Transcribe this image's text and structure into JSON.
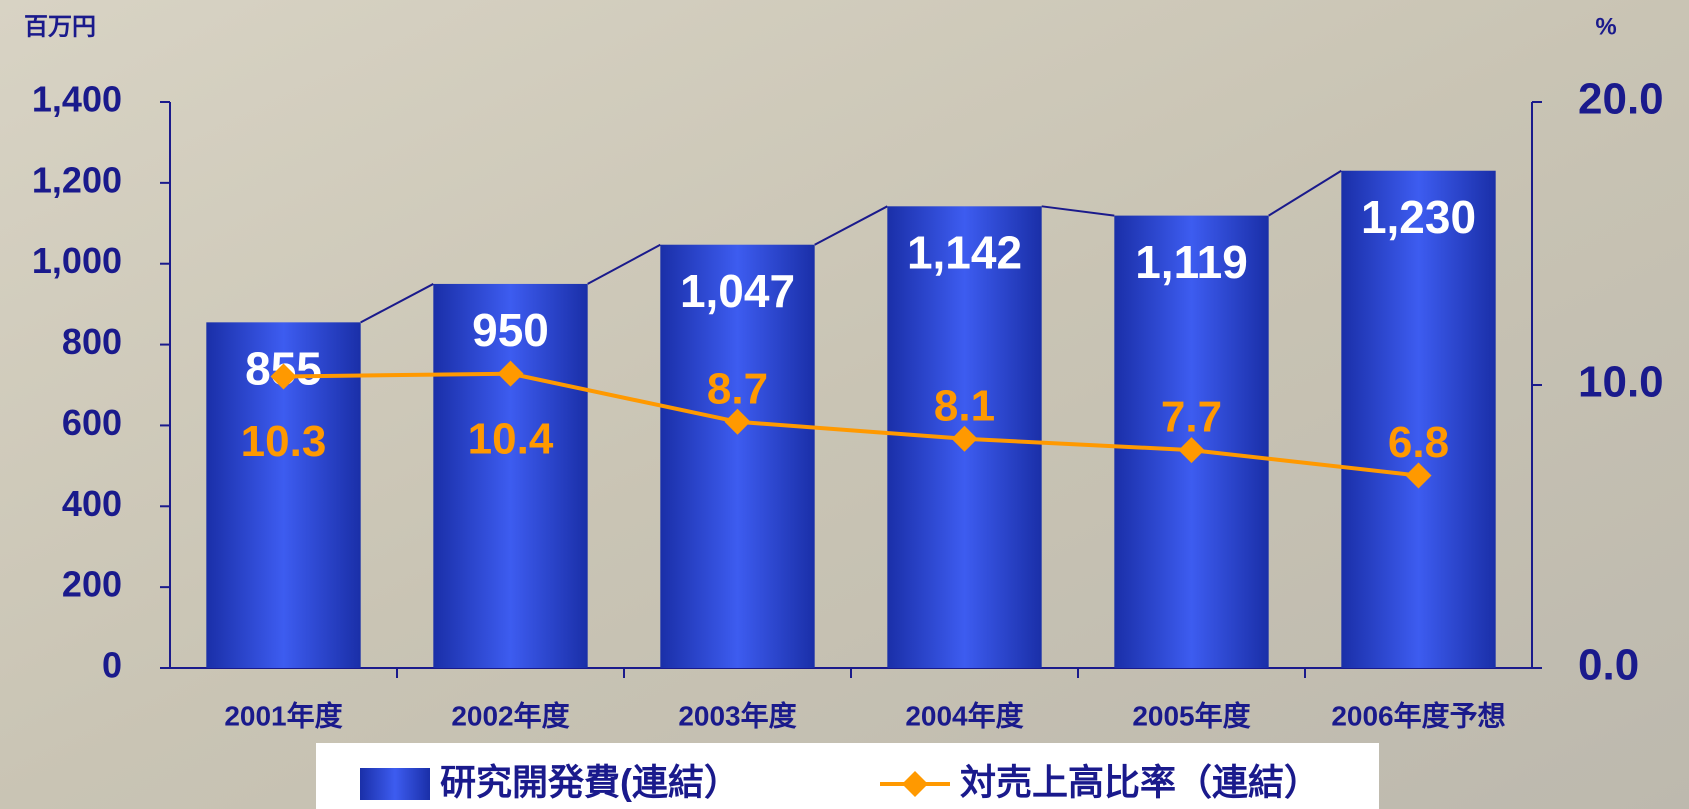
{
  "chart_data": {
    "type": "bar_line",
    "y_label": "百万円",
    "y2_label": "%",
    "categories": [
      "2001年度",
      "2002年度",
      "2003年度",
      "2004年度",
      "2005年度",
      "2006年度予想"
    ],
    "series": [
      {
        "name": "研究開発費(連結）",
        "type": "bar",
        "color": "#2a44d8",
        "values": [
          855,
          950,
          1047,
          1142,
          1119,
          1230
        ],
        "value_labels": [
          "855",
          "950",
          "1,047",
          "1,142",
          "1,119",
          "1,230"
        ]
      },
      {
        "name": "対売上高比率（連結）",
        "type": "line",
        "axis": "y2",
        "color": "#ff9900",
        "values": [
          10.3,
          10.4,
          8.7,
          8.1,
          7.7,
          6.8
        ]
      }
    ],
    "ylim": [
      0,
      1400
    ],
    "yticks": [
      0,
      200,
      400,
      600,
      800,
      {
        "value": 1000,
        "label": "1,000"
      },
      {
        "value": 1200,
        "label": "1,200"
      },
      {
        "value": 1400,
        "label": "1,400"
      }
    ],
    "y2lim": [
      0,
      20
    ],
    "y2ticks": [
      {
        "value": 0,
        "label": "0.0"
      },
      {
        "value": 10,
        "label": "10.0"
      },
      {
        "value": 20,
        "label": "20.0"
      }
    ]
  }
}
